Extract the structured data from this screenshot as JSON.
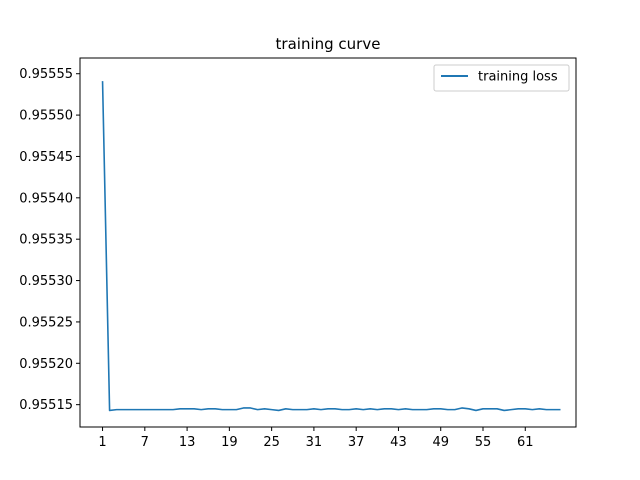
{
  "chart_data": {
    "type": "line",
    "title": "training curve",
    "xlabel": "",
    "ylabel": "",
    "x_ticks": [
      1,
      7,
      13,
      19,
      25,
      31,
      37,
      43,
      49,
      55,
      61
    ],
    "y_ticks": [
      "0.95515",
      "0.95520",
      "0.95525",
      "0.95530",
      "0.95535",
      "0.95540",
      "0.95545",
      "0.95550",
      "0.95555"
    ],
    "xlim": [
      -2.2,
      68.2
    ],
    "ylim": [
      0.955123,
      0.955569
    ],
    "grid": false,
    "legend_position": "top-right",
    "series": [
      {
        "name": "training loss",
        "color": "#1f77b4",
        "x": [
          1,
          2,
          3,
          4,
          5,
          6,
          7,
          8,
          9,
          10,
          11,
          12,
          13,
          14,
          15,
          16,
          17,
          18,
          19,
          20,
          21,
          22,
          23,
          24,
          25,
          26,
          27,
          28,
          29,
          30,
          31,
          32,
          33,
          34,
          35,
          36,
          37,
          38,
          39,
          40,
          41,
          42,
          43,
          44,
          45,
          46,
          47,
          48,
          49,
          50,
          51,
          52,
          53,
          54,
          55,
          56,
          57,
          58,
          59,
          60,
          61,
          62,
          63,
          64,
          65,
          66
        ],
        "values": [
          0.955541,
          0.955143,
          0.955144,
          0.955144,
          0.955144,
          0.955144,
          0.955144,
          0.955144,
          0.955144,
          0.955144,
          0.955144,
          0.955145,
          0.955145,
          0.955145,
          0.955144,
          0.955145,
          0.955145,
          0.955144,
          0.955144,
          0.955144,
          0.955146,
          0.955146,
          0.955144,
          0.955145,
          0.955144,
          0.955143,
          0.955145,
          0.955144,
          0.955144,
          0.955144,
          0.955145,
          0.955144,
          0.955145,
          0.955145,
          0.955144,
          0.955144,
          0.955145,
          0.955144,
          0.955145,
          0.955144,
          0.955145,
          0.955145,
          0.955144,
          0.955145,
          0.955144,
          0.955144,
          0.955144,
          0.955145,
          0.955145,
          0.955144,
          0.955144,
          0.955146,
          0.955145,
          0.955143,
          0.955145,
          0.955145,
          0.955145,
          0.955143,
          0.955144,
          0.955145,
          0.955145,
          0.955144,
          0.955145,
          0.955144,
          0.955144,
          0.955144
        ]
      }
    ]
  }
}
